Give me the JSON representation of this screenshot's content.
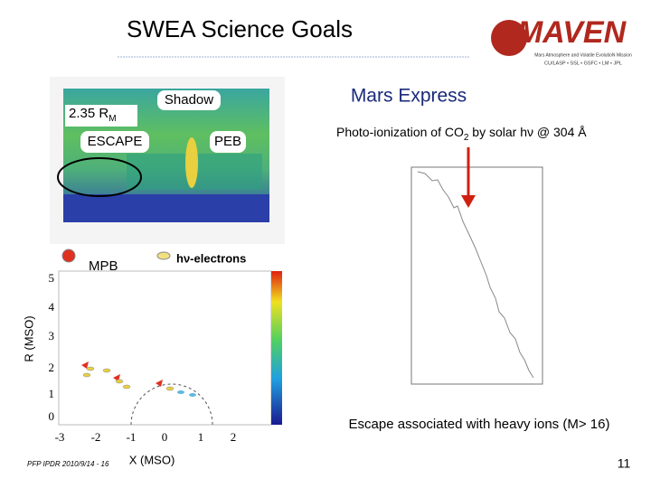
{
  "header": {
    "title": "SWEA Science Goals",
    "logo": "MAVEN",
    "logo_caption": "Mars Atmosphere and Volatile EvolutioN Mission",
    "logo_partners": "CU/LASP • SSL • GSFC • LM • JPL"
  },
  "spectrogram": {
    "radius_main": "2.35 R",
    "radius_sub": "M",
    "shadow": "Shadow",
    "escape": "ESCAPE",
    "peb": "PEB"
  },
  "orbit_plot": {
    "mpb": "MPB",
    "electrons": "hν-electrons",
    "y_label": "R (MSO)",
    "x_label": "X (MSO)",
    "y_ticks": [
      5,
      4,
      3,
      2,
      1,
      0
    ],
    "x_ticks": [
      -3,
      -2,
      -1,
      0,
      1,
      2
    ]
  },
  "mars_express": {
    "title": "Mars Express",
    "caption_before": "Photo-ionization of CO",
    "caption_sub": "2",
    "caption_after": " by solar hν @ 304 Å"
  },
  "footer": {
    "escape_note": "Escape associated with heavy ions  (M> 16)",
    "citation": "PFP IPDR 2010/9/14 - 16",
    "page_number": "11"
  }
}
